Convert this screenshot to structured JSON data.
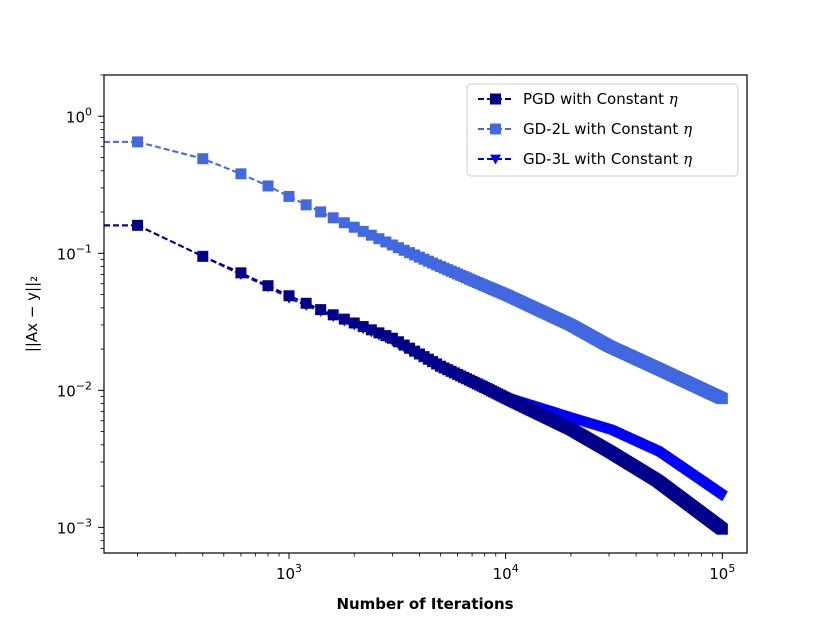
{
  "chart_data": {
    "type": "line",
    "xscale": "log",
    "yscale": "log",
    "xlabel": "Number of Iterations",
    "ylabel": "||Ax − y||₂",
    "xlim": [
      140,
      130000
    ],
    "ylim": [
      0.00065,
      2.0
    ],
    "x_ticks": [
      {
        "value": 1000,
        "base": "10",
        "exp": "3"
      },
      {
        "value": 10000,
        "base": "10",
        "exp": "4"
      },
      {
        "value": 100000,
        "base": "10",
        "exp": "5"
      }
    ],
    "y_ticks": [
      {
        "value": 1,
        "base": "10",
        "exp": "0"
      },
      {
        "value": 0.1,
        "base": "10",
        "exp": "−1"
      },
      {
        "value": 0.01,
        "base": "10",
        "exp": "−2"
      },
      {
        "value": 0.001,
        "base": "10",
        "exp": "−3"
      }
    ],
    "legend_position": "upper right",
    "series": [
      {
        "name": "PGD with Constant",
        "symbol": "η",
        "color": "#00008b",
        "marker": "square",
        "linestyle": "dashed",
        "initial_value": 0.16,
        "x": [
          200,
          400,
          600,
          800,
          1000,
          1500,
          2000,
          3000,
          5000,
          8000,
          10000,
          20000,
          30000,
          50000,
          100000
        ],
        "y": [
          0.16,
          0.095,
          0.072,
          0.058,
          0.049,
          0.037,
          0.031,
          0.024,
          0.015,
          0.0105,
          0.0088,
          0.0052,
          0.0036,
          0.0022,
          0.00097
        ]
      },
      {
        "name": "GD-2L with Constant",
        "symbol": "η",
        "color": "#4169e1",
        "marker": "square",
        "linestyle": "dashed",
        "initial_value": 0.65,
        "x": [
          200,
          400,
          600,
          800,
          1000,
          1500,
          2000,
          3000,
          5000,
          8000,
          10000,
          20000,
          30000,
          50000,
          100000
        ],
        "y": [
          0.65,
          0.49,
          0.38,
          0.31,
          0.26,
          0.19,
          0.155,
          0.115,
          0.08,
          0.058,
          0.05,
          0.03,
          0.021,
          0.0145,
          0.0087
        ]
      },
      {
        "name": "GD-3L with Constant",
        "symbol": "η",
        "color": "#0000ff",
        "marker": "triangle-down",
        "linestyle": "dashed",
        "initial_value": 0.16,
        "x": [
          200,
          400,
          600,
          800,
          1000,
          1500,
          2000,
          3000,
          5000,
          8000,
          10000,
          20000,
          30000,
          50000,
          100000
        ],
        "y": [
          0.16,
          0.095,
          0.07,
          0.057,
          0.047,
          0.036,
          0.03,
          0.023,
          0.0148,
          0.0105,
          0.0089,
          0.0063,
          0.0052,
          0.0036,
          0.0017
        ]
      }
    ]
  }
}
